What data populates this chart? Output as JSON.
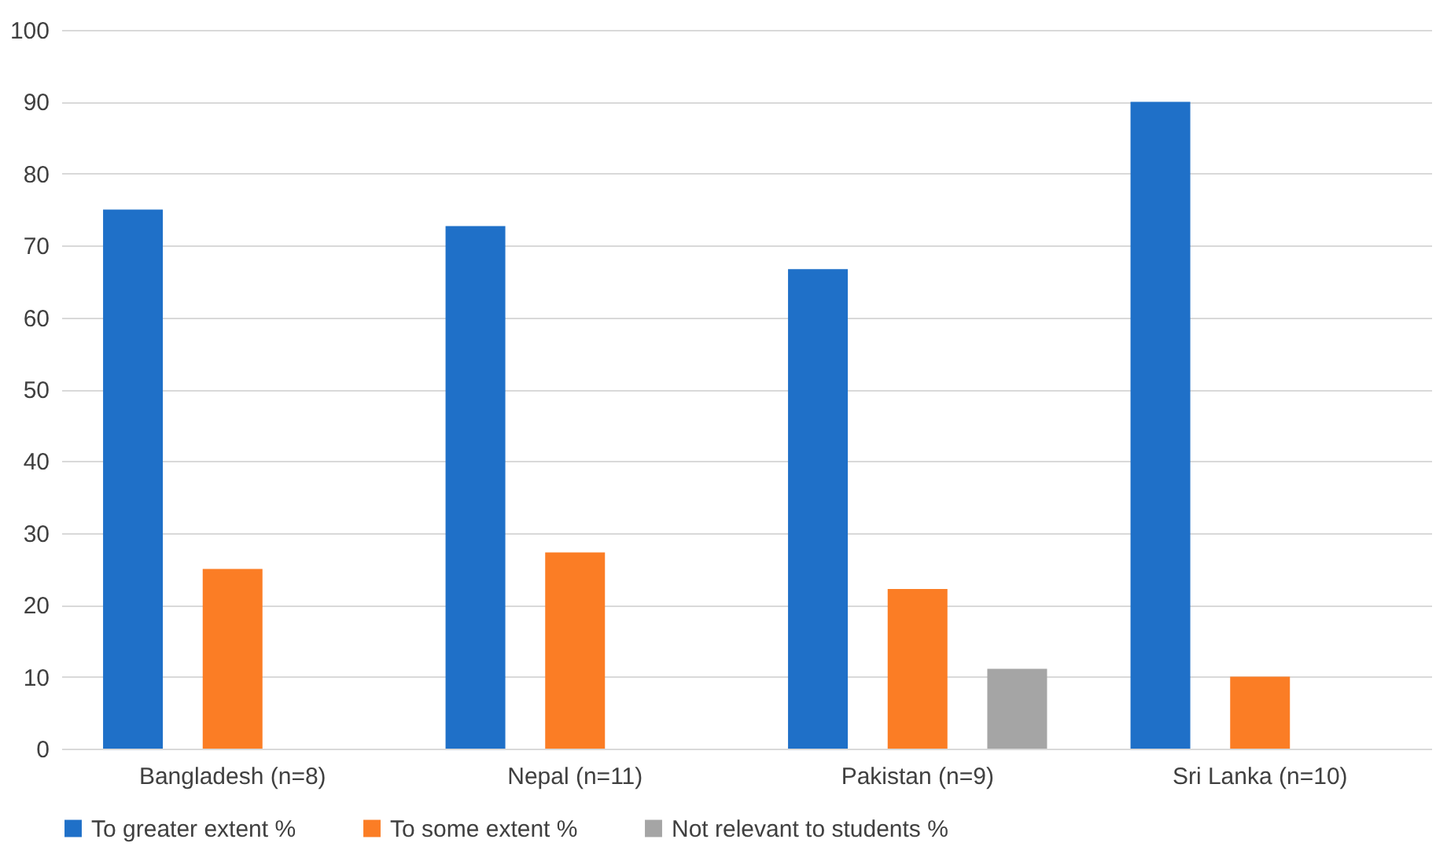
{
  "chart_data": {
    "type": "bar",
    "categories": [
      "Bangladesh (n=8)",
      "Nepal (n=11)",
      "Pakistan (n=9)",
      "Sri Lanka (n=10)"
    ],
    "series": [
      {
        "name": "To greater extent %",
        "color": "#1f70c8",
        "values": [
          75,
          72.7,
          66.7,
          90
        ]
      },
      {
        "name": "To some extent %",
        "color": "#fb7d25",
        "values": [
          25,
          27.3,
          22.2,
          10
        ]
      },
      {
        "name": "Not relevant to students %",
        "color": "#a5a5a5",
        "values": [
          null,
          null,
          11.1,
          null
        ]
      }
    ],
    "ylim": [
      0,
      100
    ],
    "yticks": [
      0,
      10,
      20,
      30,
      40,
      50,
      60,
      70,
      80,
      90,
      100
    ],
    "grid": "y",
    "legend": "bottom"
  }
}
